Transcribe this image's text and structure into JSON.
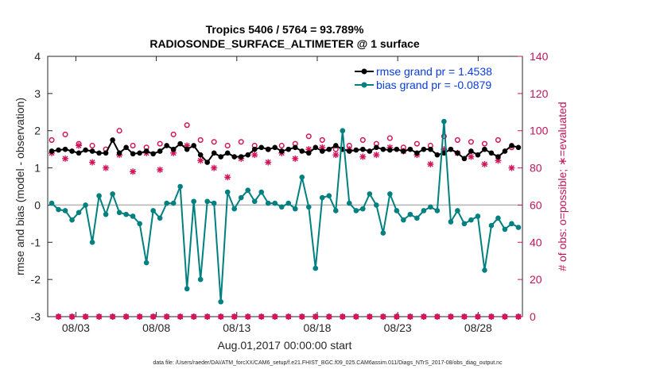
{
  "chart_data": {
    "type": "line",
    "title": "Tropics 5406 / 5764 = 93.789%",
    "subtitle": "RADIOSONDE_SURFACE_ALTIMETER @ 1 surface",
    "xlabel": "Aug.01,2017 00:00:00 start",
    "ylabel": "rmse and bias (model - observation)",
    "ylabel_right": "# of obs: o=possible; ∗=evaluated",
    "footnote": "data file: /Users/raeder/DAI/ATM_forcXX/CAM6_setup/f.e21.FHIST_BGC.f09_025.CAM6assim.011/Diags_NTrS_2017-08/obs_diag_output.nc",
    "xlim": [
      1.25,
      30.75
    ],
    "ylim": [
      -3,
      4
    ],
    "ylim_right": [
      0,
      140
    ],
    "x_ticks": [
      3,
      8,
      13,
      18,
      23,
      28
    ],
    "x_tick_labels": [
      "08/03",
      "08/08",
      "08/13",
      "08/18",
      "08/23",
      "08/28"
    ],
    "y_ticks": [
      -3,
      -2,
      -1,
      0,
      1,
      2,
      3,
      4
    ],
    "y_tick_labels": [
      "-3",
      "-2",
      "-1",
      "0",
      "1",
      "2",
      "3",
      "4"
    ],
    "y_right_ticks": [
      0,
      20,
      40,
      60,
      80,
      100,
      120,
      140
    ],
    "y_right_tick_labels": [
      "0",
      "20",
      "40",
      "60",
      "80",
      "100",
      "120",
      "140"
    ],
    "zero_line": 0,
    "colors": {
      "rmse": "#000000",
      "bias": "#008080",
      "counts": "#d2145a",
      "zero": "#b4b4b4",
      "legend_text": "#0a3cdc"
    },
    "series": [
      {
        "name": "rmse",
        "legend": "rmse grand pr = 1.4538",
        "values": [
          1.45,
          1.48,
          1.5,
          1.45,
          1.4,
          1.48,
          1.45,
          1.4,
          1.4,
          1.75,
          1.4,
          1.55,
          1.38,
          1.4,
          1.45,
          1.38,
          1.45,
          1.6,
          1.5,
          1.65,
          1.5,
          1.6,
          1.35,
          1.15,
          1.4,
          1.3,
          1.4,
          1.3,
          1.3,
          1.35,
          1.5,
          1.55,
          1.5,
          1.55,
          1.45,
          1.5,
          1.55,
          1.45,
          1.4,
          1.55,
          1.45,
          1.5,
          1.6,
          1.5,
          1.45,
          1.48,
          1.5,
          1.45,
          1.55,
          1.5,
          1.48,
          1.5,
          1.45,
          1.5,
          1.4,
          1.5,
          1.5,
          1.35,
          1.4,
          1.5,
          1.4,
          1.25,
          1.45,
          1.35,
          1.5,
          1.4,
          1.3,
          1.45,
          1.6,
          1.55
        ]
      },
      {
        "name": "bias",
        "legend": "bias grand pr = -0.0879",
        "values": [
          0.05,
          -0.12,
          -0.15,
          -0.4,
          -0.2,
          0.0,
          -1.0,
          0.25,
          -0.25,
          0.3,
          -0.2,
          -0.25,
          -0.3,
          -0.5,
          -1.55,
          -0.15,
          -0.35,
          0.05,
          0.05,
          0.5,
          -2.25,
          0.1,
          -2.0,
          0.1,
          0.05,
          -2.6,
          0.35,
          -0.1,
          0.2,
          0.4,
          0.1,
          0.35,
          0.05,
          0.05,
          -0.05,
          0.05,
          -0.1,
          0.75,
          -0.05,
          -1.7,
          0.2,
          0.25,
          -0.15,
          2.0,
          0.05,
          -0.15,
          -0.1,
          0.3,
          0.0,
          -0.75,
          0.3,
          -0.15,
          -0.4,
          -0.25,
          -0.35,
          -0.15,
          -0.05,
          -0.15,
          2.25,
          -0.45,
          -0.15,
          -0.5,
          -0.4,
          -0.3,
          -1.75,
          -0.55,
          -0.35,
          -0.65,
          -0.5,
          -0.6
        ]
      },
      {
        "name": "possible",
        "values": [
          95,
          0,
          98,
          0,
          93,
          0,
          92,
          0,
          90,
          0,
          100,
          0,
          92,
          0,
          91,
          0,
          93,
          0,
          98,
          0,
          103,
          0,
          95,
          0,
          94,
          0,
          92,
          0,
          94,
          0,
          92,
          0,
          90,
          0,
          92,
          0,
          93,
          0,
          97,
          0,
          95,
          0,
          90,
          0,
          92,
          0,
          95,
          0,
          93,
          0,
          96,
          0,
          91,
          0,
          93,
          0,
          92,
          0,
          97,
          0,
          95,
          0,
          94,
          0,
          93,
          0,
          95,
          0,
          91,
          0
        ]
      },
      {
        "name": "evaluated",
        "values": [
          88,
          0,
          85,
          0,
          92,
          0,
          83,
          0,
          80,
          0,
          87,
          0,
          78,
          0,
          88,
          0,
          79,
          0,
          88,
          0,
          92,
          0,
          84,
          0,
          80,
          0,
          75,
          0,
          85,
          0,
          87,
          0,
          83,
          0,
          88,
          0,
          85,
          0,
          90,
          0,
          91,
          0,
          87,
          0,
          90,
          0,
          86,
          0,
          87,
          0,
          91,
          0,
          89,
          0,
          87,
          0,
          82,
          0,
          90,
          0,
          88,
          0,
          86,
          0,
          82,
          0,
          84,
          0,
          80,
          0
        ]
      }
    ]
  }
}
